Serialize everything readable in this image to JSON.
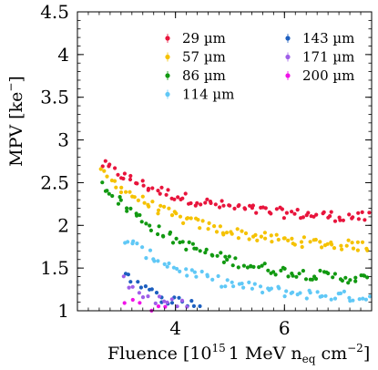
{
  "chart_data": {
    "type": "scatter",
    "title": "",
    "xlabel_text": "Fluence [10",
    "xlabel_sup": "15",
    "xlabel_mid": "1 MeV n",
    "xlabel_sub": "eq",
    "xlabel_unit": " cm",
    "xlabel_unit_sup": "−2",
    "xlabel_close": "]",
    "ylabel_text": "MPV [ke",
    "ylabel_sup": "−",
    "ylabel_close": "]",
    "xlim": [
      2.2,
      7.6
    ],
    "ylim": [
      1.0,
      4.5
    ],
    "x_ticks": [
      {
        "value": 4,
        "label": "4"
      },
      {
        "value": 6,
        "label": "6"
      }
    ],
    "y_ticks": [
      {
        "value": 1.0,
        "label": "1"
      },
      {
        "value": 1.5,
        "label": "1.5"
      },
      {
        "value": 2.0,
        "label": "2"
      },
      {
        "value": 2.5,
        "label": "2.5"
      },
      {
        "value": 3.0,
        "label": "3"
      },
      {
        "value": 3.5,
        "label": "3.5"
      },
      {
        "value": 4.0,
        "label": "4"
      },
      {
        "value": 4.5,
        "label": "4.5"
      }
    ],
    "grid": false,
    "legend_position": "top-right",
    "series": [
      {
        "name": "29 µm",
        "color": "#e8143c",
        "start": 2.72,
        "end": 2.06,
        "xstart": 2.65,
        "xend": 7.55,
        "npts": 90
      },
      {
        "name": "57 µm",
        "color": "#f5c200",
        "start": 2.62,
        "end": 1.71,
        "xstart": 2.65,
        "xend": 7.55,
        "npts": 90
      },
      {
        "name": "86 µm",
        "color": "#119911",
        "start": 2.5,
        "end": 1.31,
        "xstart": 2.65,
        "xend": 7.55,
        "npts": 90
      },
      {
        "name": "114 µm",
        "color": "#60c8f6",
        "start": 1.85,
        "end": 1.12,
        "xstart": 3.05,
        "xend": 7.55,
        "npts": 70
      },
      {
        "name": "143 µm",
        "color": "#1d5fbf",
        "start": 1.5,
        "end": 1.06,
        "xstart": 3.05,
        "xend": 4.45,
        "npts": 20
      },
      {
        "name": "171 µm",
        "color": "#9f5fe8",
        "start": 1.38,
        "end": 1.05,
        "xstart": 3.05,
        "xend": 4.25,
        "npts": 14
      },
      {
        "name": "200 µm",
        "color": "#f012e8",
        "start": 1.15,
        "end": 1.03,
        "xstart": 3.05,
        "xend": 3.85,
        "npts": 6
      }
    ]
  }
}
